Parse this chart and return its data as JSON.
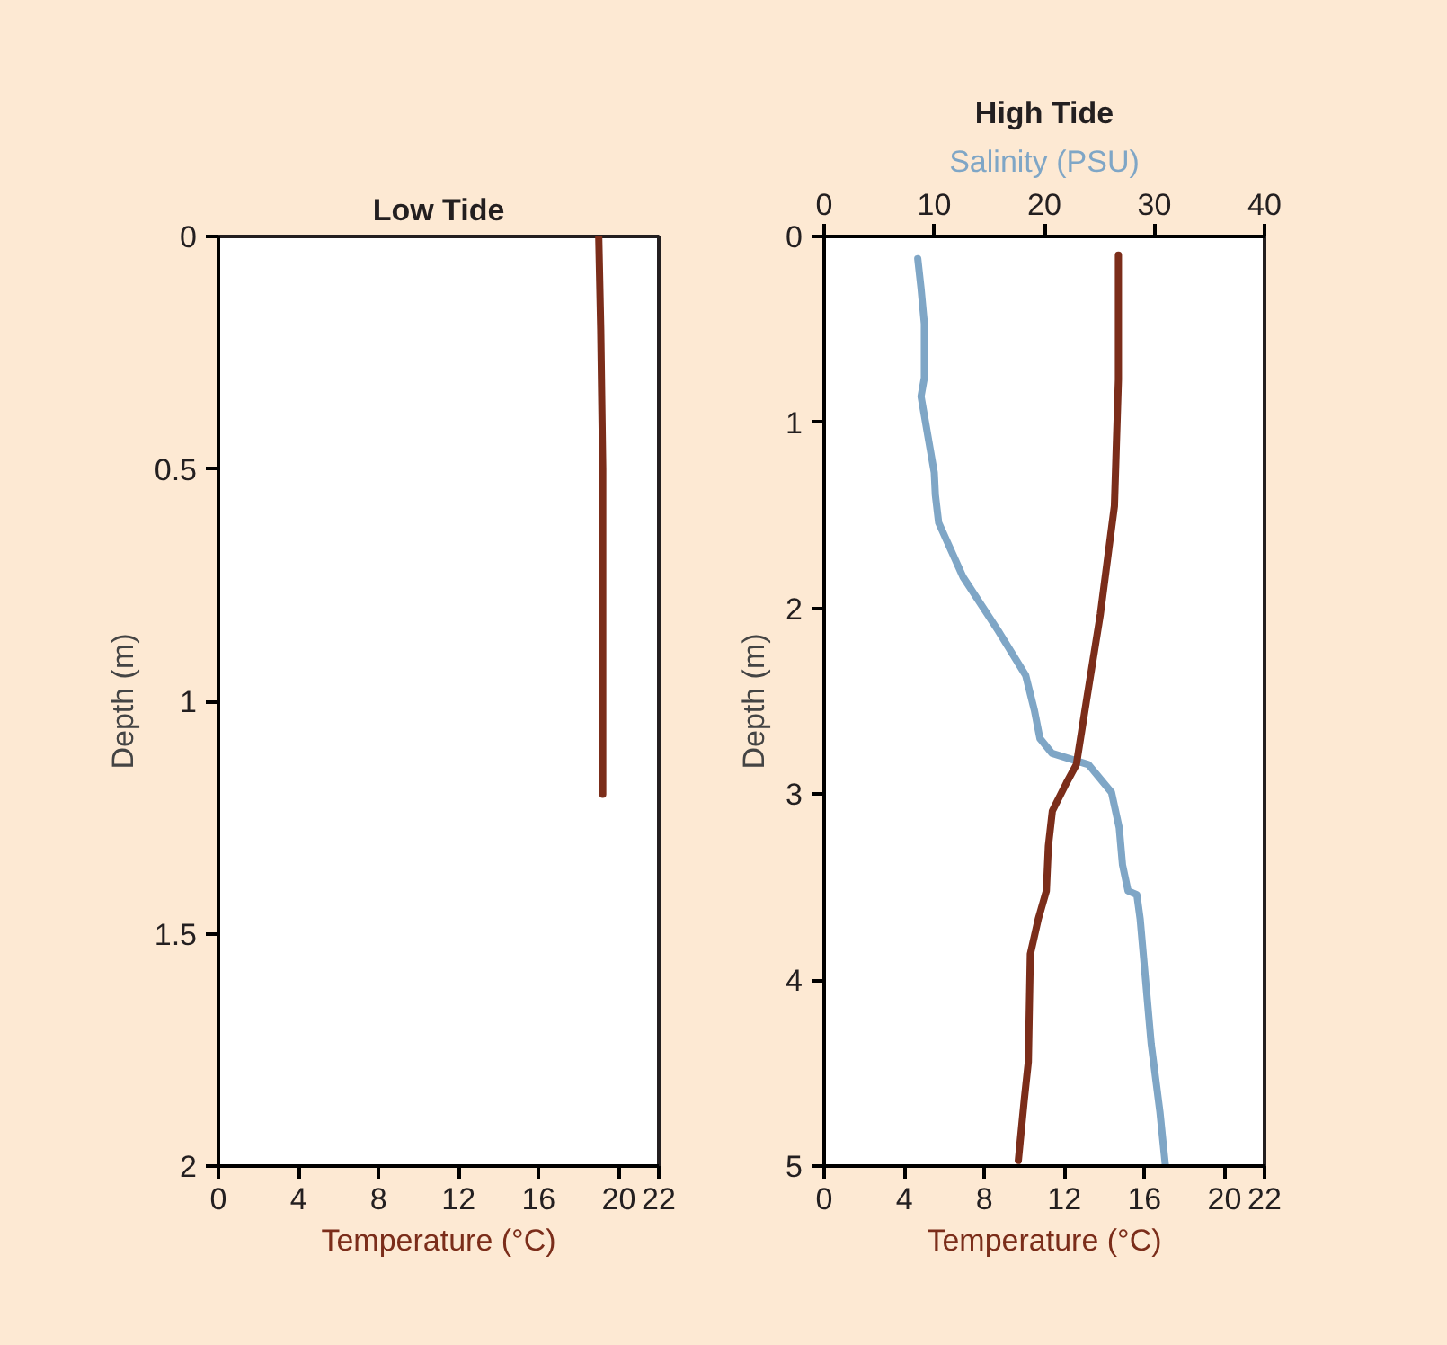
{
  "chart_data": [
    {
      "type": "line",
      "title": "Low Tide",
      "xlabel": "Temperature (°C)",
      "ylabel": "Depth (m)",
      "xlim": [
        0,
        22
      ],
      "xticks": [
        0,
        4,
        8,
        12,
        16,
        20,
        22
      ],
      "ylim": [
        2,
        0
      ],
      "yticks": [
        0,
        0.5,
        1,
        1.5,
        2
      ],
      "series": [
        {
          "color": "#7b2d1a",
          "x": [
            19.0,
            19.1,
            19.2,
            19.2,
            19.2
          ],
          "values": [
            0,
            0.2,
            0.5,
            0.9,
            1.2
          ]
        }
      ]
    },
    {
      "type": "line",
      "title": "High Tide",
      "xlabel": "Temperature (°C)",
      "x2label": "Salinity (PSU)",
      "ylabel": "Depth (m)",
      "xlim": [
        0,
        22
      ],
      "xticks": [
        0,
        4,
        8,
        12,
        16,
        20,
        22
      ],
      "x2lim": [
        0,
        40
      ],
      "x2ticks": [
        0,
        10,
        20,
        30,
        40
      ],
      "ylim": [
        5,
        0
      ],
      "yticks": [
        0,
        1,
        2,
        3,
        4,
        5
      ],
      "series": [
        {
          "color": "#7fa6c6",
          "axis": "x2",
          "x": [
            8.5,
            8.8,
            9.1,
            9.1,
            8.8,
            9.5,
            10.0,
            10.1,
            10.4,
            12.6,
            15.8,
            18.3,
            19.1,
            19.6,
            20.7,
            24.0,
            26.1,
            26.8,
            27.1,
            27.6,
            28.4,
            28.7,
            29.7,
            30.5,
            31.0
          ],
          "values": [
            0.12,
            0.28,
            0.47,
            0.76,
            0.86,
            1.1,
            1.27,
            1.39,
            1.54,
            1.83,
            2.12,
            2.36,
            2.55,
            2.7,
            2.78,
            2.84,
            2.99,
            3.18,
            3.38,
            3.52,
            3.54,
            3.67,
            4.34,
            4.71,
            5.0
          ]
        },
        {
          "color": "#7b2d1a",
          "x": [
            14.7,
            14.7,
            14.5,
            13.8,
            13.1,
            12.6,
            12.1,
            11.4,
            11.2,
            11.1,
            10.7,
            10.3,
            10.2,
            10.0,
            9.7
          ],
          "values": [
            0.1,
            0.77,
            1.45,
            2.03,
            2.5,
            2.84,
            2.94,
            3.09,
            3.28,
            3.52,
            3.67,
            3.86,
            4.44,
            4.64,
            4.97
          ]
        }
      ]
    }
  ]
}
